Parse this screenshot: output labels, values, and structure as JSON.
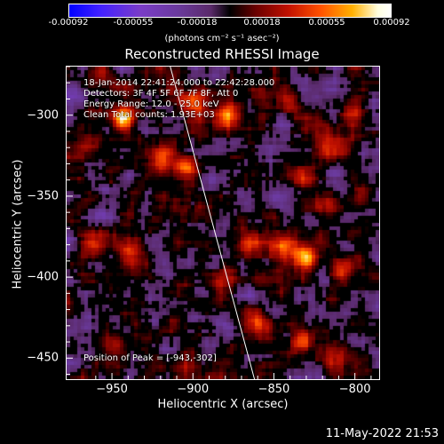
{
  "colorbar": {
    "ticks": [
      "-0.00092",
      "-0.00055",
      "-0.00018",
      "0.00018",
      "0.00055",
      "0.00092"
    ],
    "units": "(photons cm⁻² s⁻¹ asec⁻²)"
  },
  "header": {
    "title": "Reconstructed RHESSI Image"
  },
  "info": {
    "time": "18-Jan-2014 22:41:24.000 to 22:42:28.000",
    "detectors": "Detectors: 3F 4F 5F 6F 7F 8F, Att 0",
    "energy": "Energy Range: 12.0 - 25.0 keV",
    "clean": "Clean   Total counts: 1.93E+03"
  },
  "peak_label": "Position of Peak = [-943,-302]",
  "footer": {
    "date": "11-May-2022 21:53"
  },
  "chart_data": {
    "type": "heatmap",
    "title": "Reconstructed RHESSI Image",
    "xlabel": "Heliocentric X (arcsec)",
    "ylabel": "Heliocentric Y (arcsec)",
    "xlim": [
      -978,
      -785
    ],
    "ylim": [
      -463,
      -270
    ],
    "x_ticks": [
      -950,
      -900,
      -850,
      -800
    ],
    "y_ticks": [
      -300,
      -350,
      -400,
      -450
    ],
    "color_range": [
      -0.00092,
      0.00092
    ],
    "peak": {
      "x": -943,
      "y": -302
    },
    "limb_line": {
      "x": [
        -914,
        -862
      ],
      "y": [
        -270,
        -463
      ]
    }
  }
}
